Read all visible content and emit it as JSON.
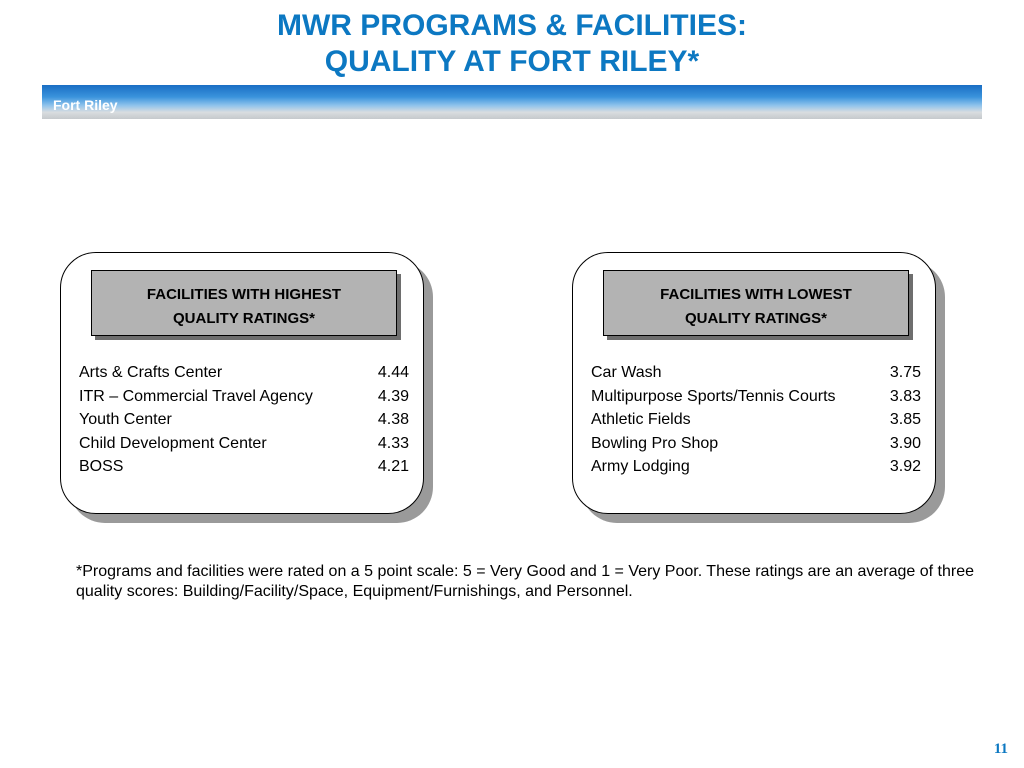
{
  "title": {
    "line1": "MWR PROGRAMS & FACILITIES:",
    "line2": "QUALITY AT FORT RILEY*"
  },
  "band": {
    "label": "Fort Riley"
  },
  "panels": [
    {
      "header_line1": "FACILITIES WITH HIGHEST",
      "header_line2": "QUALITY RATINGS*",
      "rows": [
        {
          "label": "Arts & Crafts Center",
          "value": "4.44"
        },
        {
          "label": "ITR – Commercial Travel Agency",
          "value": "4.39"
        },
        {
          "label": "Youth Center",
          "value": "4.38"
        },
        {
          "label": "Child Development Center",
          "value": "4.33"
        },
        {
          "label": "BOSS",
          "value": "4.21"
        }
      ]
    },
    {
      "header_line1": "FACILITIES WITH LOWEST",
      "header_line2": "QUALITY RATINGS*",
      "rows": [
        {
          "label": "Car Wash",
          "value": "3.75"
        },
        {
          "label": "Multipurpose Sports/Tennis Courts",
          "value": "3.83"
        },
        {
          "label": "Athletic Fields",
          "value": "3.85"
        },
        {
          "label": "Bowling Pro Shop",
          "value": "3.90"
        },
        {
          "label": "Army Lodging",
          "value": "3.92"
        }
      ]
    }
  ],
  "footnote": "*Programs and facilities were rated on a 5 point scale: 5 = Very Good and 1 = Very Poor.  These ratings are an average of three quality scores: Building/Facility/Space, Equipment/Furnishings, and Personnel.",
  "page_number": "11",
  "colors": {
    "title": "#0c78c2",
    "band": "#1a6ec4",
    "header_fill": "#b3b3b3"
  }
}
